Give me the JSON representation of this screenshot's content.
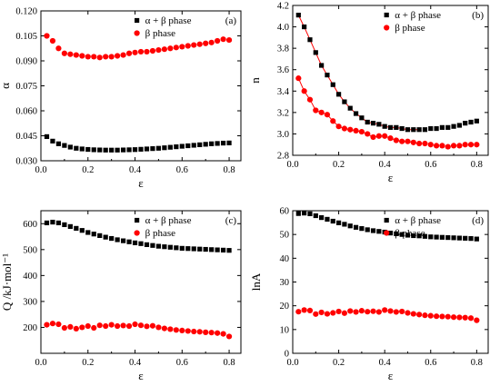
{
  "chart_data": [
    {
      "type": "scatter",
      "panel": "(a)",
      "xlabel": "ε",
      "ylabel": "α",
      "xlim": [
        0,
        0.85
      ],
      "ylim": [
        0.03,
        0.12
      ],
      "xticks": [
        "0.0",
        "0.2",
        "0.4",
        "0.6",
        "0.8"
      ],
      "yticks": [
        "0.030",
        "0.045",
        "0.060",
        "0.075",
        "0.090",
        "0.105",
        "0.120"
      ],
      "legend_position": "top-right",
      "series": [
        {
          "name": "α + β phase",
          "color": "#000000",
          "marker": "square",
          "x": [
            0.025,
            0.05,
            0.075,
            0.1,
            0.125,
            0.15,
            0.175,
            0.2,
            0.225,
            0.25,
            0.275,
            0.3,
            0.325,
            0.35,
            0.375,
            0.4,
            0.425,
            0.45,
            0.475,
            0.5,
            0.525,
            0.55,
            0.575,
            0.6,
            0.625,
            0.65,
            0.675,
            0.7,
            0.725,
            0.75,
            0.775,
            0.8
          ],
          "y": [
            0.0445,
            0.0418,
            0.0402,
            0.0392,
            0.0382,
            0.0375,
            0.0371,
            0.0368,
            0.0366,
            0.0365,
            0.0364,
            0.0364,
            0.0364,
            0.0365,
            0.0366,
            0.0367,
            0.0369,
            0.0371,
            0.0373,
            0.0375,
            0.0378,
            0.0381,
            0.0384,
            0.0387,
            0.039,
            0.0393,
            0.0396,
            0.0399,
            0.0402,
            0.0404,
            0.0406,
            0.0407
          ]
        },
        {
          "name": "β phase",
          "color": "#ff0000",
          "marker": "circle",
          "x": [
            0.025,
            0.05,
            0.075,
            0.1,
            0.125,
            0.15,
            0.175,
            0.2,
            0.225,
            0.25,
            0.275,
            0.3,
            0.325,
            0.35,
            0.375,
            0.4,
            0.425,
            0.45,
            0.475,
            0.5,
            0.525,
            0.55,
            0.575,
            0.6,
            0.625,
            0.65,
            0.675,
            0.7,
            0.725,
            0.75,
            0.775,
            0.8
          ],
          "y": [
            0.105,
            0.102,
            0.0975,
            0.0945,
            0.094,
            0.0935,
            0.093,
            0.0925,
            0.0925,
            0.092,
            0.0925,
            0.0925,
            0.093,
            0.0935,
            0.0945,
            0.095,
            0.0955,
            0.0955,
            0.096,
            0.0965,
            0.097,
            0.0975,
            0.098,
            0.0985,
            0.099,
            0.0995,
            0.1,
            0.1005,
            0.101,
            0.102,
            0.103,
            0.1025
          ]
        }
      ]
    },
    {
      "type": "scatter",
      "panel": "(b)",
      "xlabel": "ε",
      "ylabel": "n",
      "xlim": [
        0,
        0.85
      ],
      "ylim": [
        2.8,
        4.2
      ],
      "xticks": [
        "0.0",
        "0.2",
        "0.4",
        "0.6",
        "0.8"
      ],
      "yticks": [
        "2.8",
        "3.0",
        "3.2",
        "3.4",
        "3.6",
        "3.8",
        "4.0",
        "4.2"
      ],
      "legend_position": "top-right",
      "series": [
        {
          "name": "α + β phase",
          "color": "#000000",
          "marker": "square",
          "x": [
            0.025,
            0.05,
            0.075,
            0.1,
            0.125,
            0.15,
            0.175,
            0.2,
            0.225,
            0.25,
            0.275,
            0.3,
            0.325,
            0.35,
            0.375,
            0.4,
            0.425,
            0.45,
            0.475,
            0.5,
            0.525,
            0.55,
            0.575,
            0.6,
            0.625,
            0.65,
            0.675,
            0.7,
            0.725,
            0.75,
            0.775,
            0.8
          ],
          "y": [
            4.11,
            4.0,
            3.88,
            3.76,
            3.64,
            3.55,
            3.46,
            3.37,
            3.3,
            3.24,
            3.19,
            3.15,
            3.11,
            3.1,
            3.09,
            3.07,
            3.06,
            3.06,
            3.05,
            3.04,
            3.04,
            3.04,
            3.04,
            3.05,
            3.05,
            3.06,
            3.06,
            3.07,
            3.08,
            3.1,
            3.11,
            3.12
          ]
        },
        {
          "name": "β phase",
          "color": "#ff0000",
          "marker": "circle",
          "x": [
            0.025,
            0.05,
            0.075,
            0.1,
            0.125,
            0.15,
            0.175,
            0.2,
            0.225,
            0.25,
            0.275,
            0.3,
            0.325,
            0.35,
            0.375,
            0.4,
            0.425,
            0.45,
            0.475,
            0.5,
            0.525,
            0.55,
            0.575,
            0.6,
            0.625,
            0.65,
            0.675,
            0.7,
            0.725,
            0.75,
            0.775,
            0.8
          ],
          "y": [
            3.52,
            3.4,
            3.32,
            3.22,
            3.2,
            3.18,
            3.12,
            3.07,
            3.05,
            3.04,
            3.03,
            3.02,
            3.0,
            2.97,
            2.98,
            2.98,
            2.96,
            2.94,
            2.93,
            2.93,
            2.92,
            2.91,
            2.91,
            2.9,
            2.89,
            2.89,
            2.88,
            2.89,
            2.89,
            2.9,
            2.9,
            2.9
          ]
        }
      ]
    },
    {
      "type": "scatter",
      "panel": "(c)",
      "xlabel": "ε",
      "ylabel": "Q /kJ·mol⁻¹",
      "xlim": [
        0,
        0.85
      ],
      "ylim": [
        100,
        650
      ],
      "xticks": [
        "0.0",
        "0.2",
        "0.4",
        "0.6",
        "0.8"
      ],
      "yticks": [
        "200",
        "300",
        "400",
        "500",
        "600"
      ],
      "legend_position": "top-right",
      "series": [
        {
          "name": "α + β phase",
          "color": "#000000",
          "marker": "square",
          "x": [
            0.025,
            0.05,
            0.075,
            0.1,
            0.125,
            0.15,
            0.175,
            0.2,
            0.225,
            0.25,
            0.275,
            0.3,
            0.325,
            0.35,
            0.375,
            0.4,
            0.425,
            0.45,
            0.475,
            0.5,
            0.525,
            0.55,
            0.575,
            0.6,
            0.625,
            0.65,
            0.675,
            0.7,
            0.725,
            0.75,
            0.775,
            0.8
          ],
          "y": [
            603,
            606,
            603,
            596,
            589,
            582,
            574,
            566,
            560,
            554,
            548,
            543,
            538,
            534,
            530,
            526,
            523,
            519,
            516,
            513,
            511,
            509,
            507,
            505,
            504,
            503,
            502,
            501,
            500,
            499,
            498,
            497
          ]
        },
        {
          "name": "β phase",
          "color": "#ff0000",
          "marker": "circle",
          "x": [
            0.025,
            0.05,
            0.075,
            0.1,
            0.125,
            0.15,
            0.175,
            0.2,
            0.225,
            0.25,
            0.275,
            0.3,
            0.325,
            0.35,
            0.375,
            0.4,
            0.425,
            0.45,
            0.475,
            0.5,
            0.525,
            0.55,
            0.575,
            0.6,
            0.625,
            0.65,
            0.675,
            0.7,
            0.725,
            0.75,
            0.775,
            0.8
          ],
          "y": [
            210,
            215,
            212,
            198,
            202,
            195,
            200,
            205,
            198,
            208,
            205,
            210,
            205,
            207,
            205,
            212,
            208,
            204,
            206,
            200,
            196,
            193,
            190,
            188,
            186,
            184,
            183,
            181,
            180,
            178,
            175,
            165
          ]
        }
      ]
    },
    {
      "type": "scatter",
      "panel": "(d)",
      "xlabel": "ε",
      "ylabel": "lnA",
      "xlim": [
        0,
        0.85
      ],
      "ylim": [
        0,
        60
      ],
      "xticks": [
        "0.0",
        "0.2",
        "0.4",
        "0.6",
        "0.8"
      ],
      "yticks": [
        "0",
        "10",
        "20",
        "30",
        "40",
        "50",
        "60"
      ],
      "legend_position": "top-right",
      "series": [
        {
          "name": "α + β phase",
          "color": "#000000",
          "marker": "square",
          "x": [
            0.025,
            0.05,
            0.075,
            0.1,
            0.125,
            0.15,
            0.175,
            0.2,
            0.225,
            0.25,
            0.275,
            0.3,
            0.325,
            0.35,
            0.375,
            0.4,
            0.425,
            0.45,
            0.475,
            0.5,
            0.525,
            0.55,
            0.575,
            0.6,
            0.625,
            0.65,
            0.675,
            0.7,
            0.725,
            0.75,
            0.775,
            0.8
          ],
          "y": [
            58.8,
            59.0,
            58.7,
            57.9,
            57.1,
            56.4,
            55.6,
            54.9,
            54.3,
            53.6,
            53.0,
            52.5,
            52.0,
            51.6,
            51.3,
            51.0,
            50.6,
            50.3,
            50.0,
            49.7,
            49.5,
            49.4,
            49.2,
            49.0,
            48.9,
            48.8,
            48.7,
            48.6,
            48.5,
            48.4,
            48.3,
            48.1
          ]
        },
        {
          "name": "β phase",
          "color": "#ff0000",
          "marker": "circle",
          "x": [
            0.025,
            0.05,
            0.075,
            0.1,
            0.125,
            0.15,
            0.175,
            0.2,
            0.225,
            0.25,
            0.275,
            0.3,
            0.325,
            0.35,
            0.375,
            0.4,
            0.425,
            0.45,
            0.475,
            0.5,
            0.525,
            0.55,
            0.575,
            0.6,
            0.625,
            0.65,
            0.675,
            0.7,
            0.725,
            0.75,
            0.775,
            0.8
          ],
          "y": [
            17.5,
            18.2,
            18.0,
            16.5,
            17.2,
            16.6,
            17.0,
            17.6,
            16.9,
            17.8,
            17.4,
            17.9,
            17.5,
            17.7,
            17.4,
            18.2,
            17.8,
            17.4,
            17.6,
            17.0,
            16.6,
            16.3,
            16.0,
            15.8,
            15.6,
            15.5,
            15.4,
            15.2,
            15.1,
            15.0,
            14.8,
            13.9
          ]
        }
      ]
    }
  ]
}
